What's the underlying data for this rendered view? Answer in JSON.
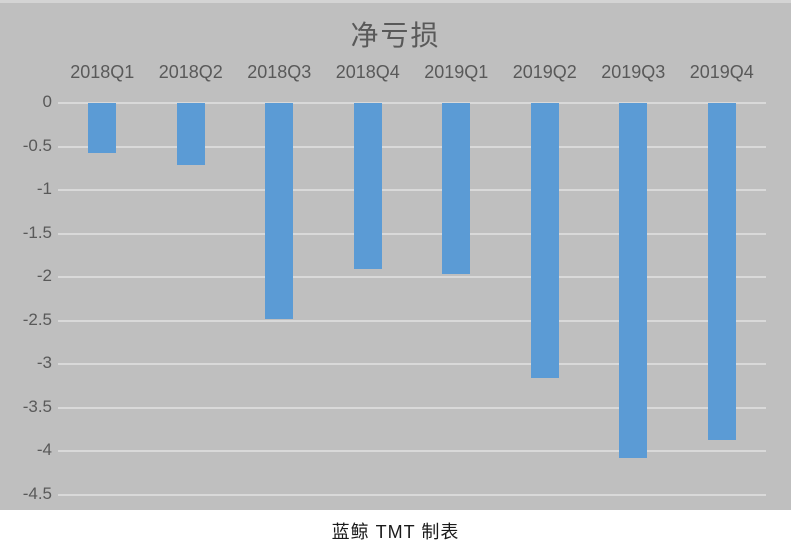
{
  "chart_data": {
    "type": "bar",
    "title": "净亏损",
    "categories": [
      "2018Q1",
      "2018Q2",
      "2018Q3",
      "2018Q4",
      "2019Q1",
      "2019Q2",
      "2019Q3",
      "2019Q4"
    ],
    "values": [
      -0.57,
      -0.71,
      -2.48,
      -1.91,
      -1.97,
      -3.16,
      -4.08,
      -3.87
    ],
    "xlabel": "",
    "ylabel": "",
    "ylim": [
      -4.5,
      0
    ],
    "y_ticks": [
      0,
      -0.5,
      -1,
      -1.5,
      -2,
      -2.5,
      -3,
      -3.5,
      -4,
      -4.5
    ],
    "y_tick_labels": [
      "0",
      "-0.5",
      "-1",
      "-1.5",
      "-2",
      "-2.5",
      "-3",
      "-3.5",
      "-4",
      "-4.5"
    ],
    "grid": true,
    "legend": "none",
    "category_label_position": "top",
    "colors": {
      "bar": "#5b9bd5",
      "plot_background": "#bfbfbf",
      "gridline": "#d9d9d9",
      "label_text": "#595959",
      "title_text": "#595959",
      "caption_text": "#1a1a1a",
      "footer_background": "#ffffff"
    }
  },
  "footer": {
    "caption": "蓝鲸 TMT 制表"
  }
}
